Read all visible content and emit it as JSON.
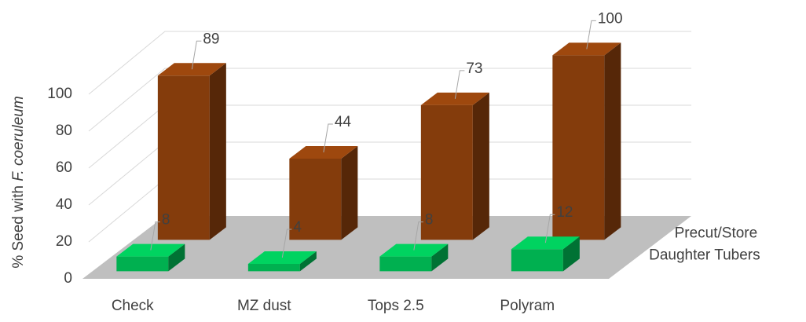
{
  "chart_data": {
    "type": "bar3d",
    "y_label": [
      "% Seed with ",
      "F. coeruleum"
    ],
    "categories": [
      "Check",
      "MZ dust",
      "Tops 2.5",
      "Polyram"
    ],
    "series": [
      {
        "name": "Daughter Tubers",
        "color": "#00b050",
        "values": [
          8,
          4,
          8,
          12
        ]
      },
      {
        "name": "Precut/Store",
        "color": "#843c0c",
        "values": [
          89,
          44,
          73,
          100
        ]
      }
    ],
    "ylim": [
      0,
      100
    ],
    "yticks": [
      0,
      20,
      40,
      60,
      80,
      100
    ],
    "grid": true
  }
}
